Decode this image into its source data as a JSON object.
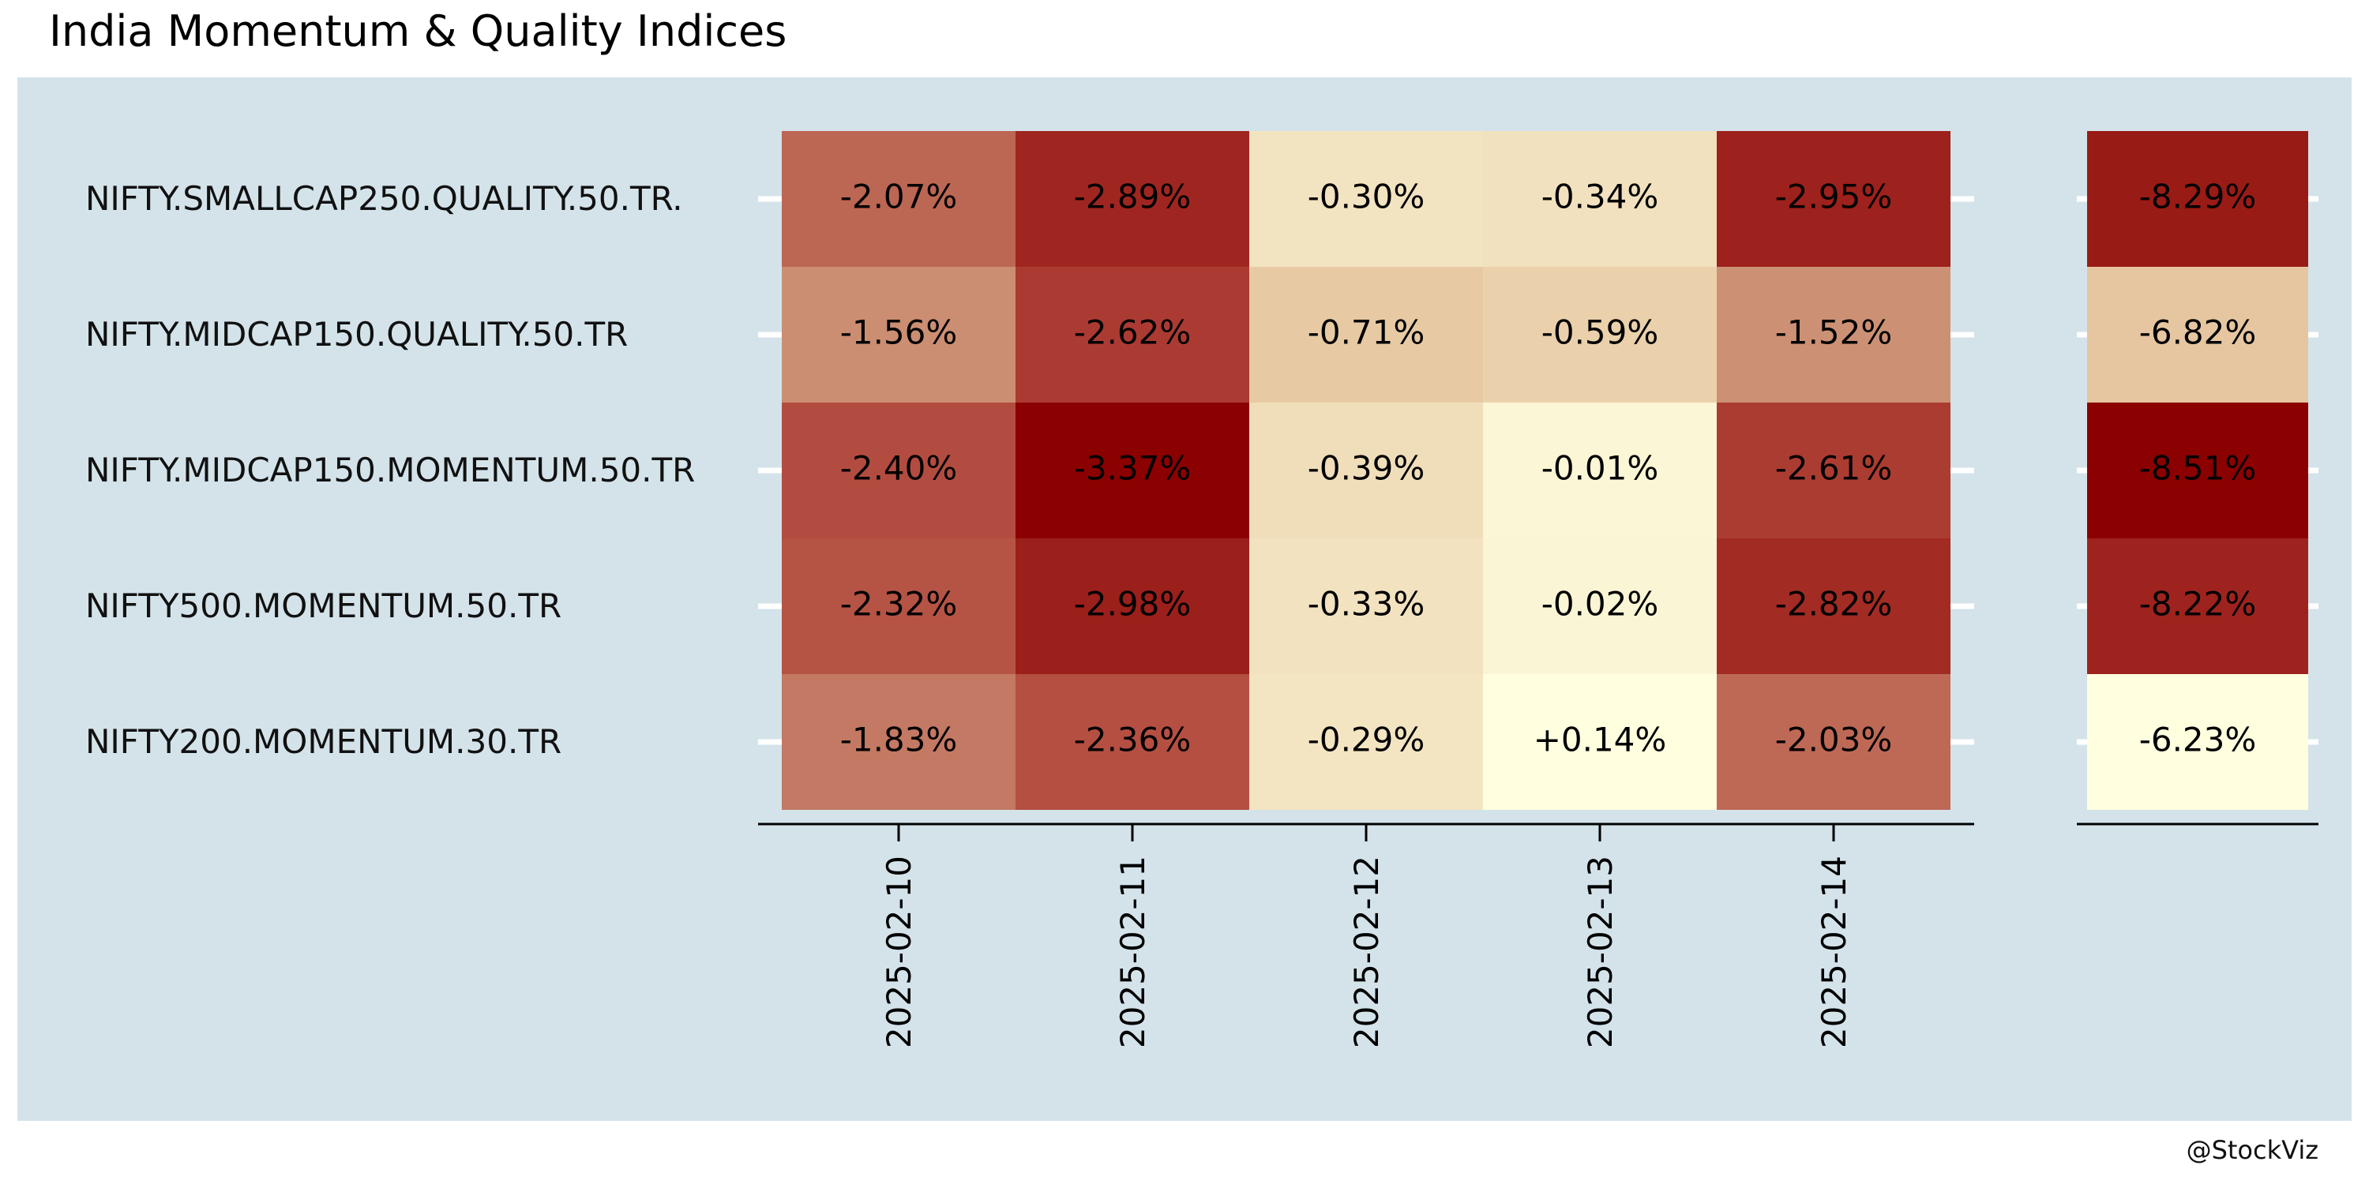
{
  "chart_data": {
    "type": "heatmap",
    "title": "India Momentum & Quality Indices",
    "caption": "@StockViz",
    "rows": [
      "NIFTY.SMALLCAP250.QUALITY.50.TR.",
      "NIFTY.MIDCAP150.QUALITY.50.TR",
      "NIFTY.MIDCAP150.MOMENTUM.50.TR",
      "NIFTY500.MOMENTUM.50.TR",
      "NIFTY200.MOMENTUM.30.TR"
    ],
    "columns": [
      "2025-02-10",
      "2025-02-11",
      "2025-02-12",
      "2025-02-13",
      "2025-02-14"
    ],
    "values": [
      [
        -2.07,
        -2.89,
        -0.3,
        -0.34,
        -2.95
      ],
      [
        -1.56,
        -2.62,
        -0.71,
        -0.59,
        -1.52
      ],
      [
        -2.4,
        -3.37,
        -0.39,
        -0.01,
        -2.61
      ],
      [
        -2.32,
        -2.98,
        -0.33,
        -0.02,
        -2.82
      ],
      [
        -1.83,
        -2.36,
        -0.29,
        0.14,
        -2.03
      ]
    ],
    "cell_labels": [
      [
        "-2.07%",
        "-2.89%",
        "-0.30%",
        "-0.34%",
        "-2.95%"
      ],
      [
        "-1.56%",
        "-2.62%",
        "-0.71%",
        "-0.59%",
        "-1.52%"
      ],
      [
        "-2.40%",
        "-3.37%",
        "-0.39%",
        "-0.01%",
        "-2.61%"
      ],
      [
        "-2.32%",
        "-2.98%",
        "-0.33%",
        "-0.02%",
        "-2.82%"
      ],
      [
        "-1.83%",
        "-2.36%",
        "-0.29%",
        "+0.14%",
        "-2.03%"
      ]
    ],
    "totals": [
      -8.29,
      -6.82,
      -8.51,
      -8.22,
      -6.23
    ],
    "total_labels": [
      "-8.29%",
      "-6.82%",
      "-8.51%",
      "-8.22%",
      "-6.23%"
    ],
    "color_scale": {
      "low": "#8b0000",
      "high": "#ffffe0"
    },
    "colors": {
      "panel_background": "#d4e3ea",
      "page_background": "#ffffff"
    }
  }
}
